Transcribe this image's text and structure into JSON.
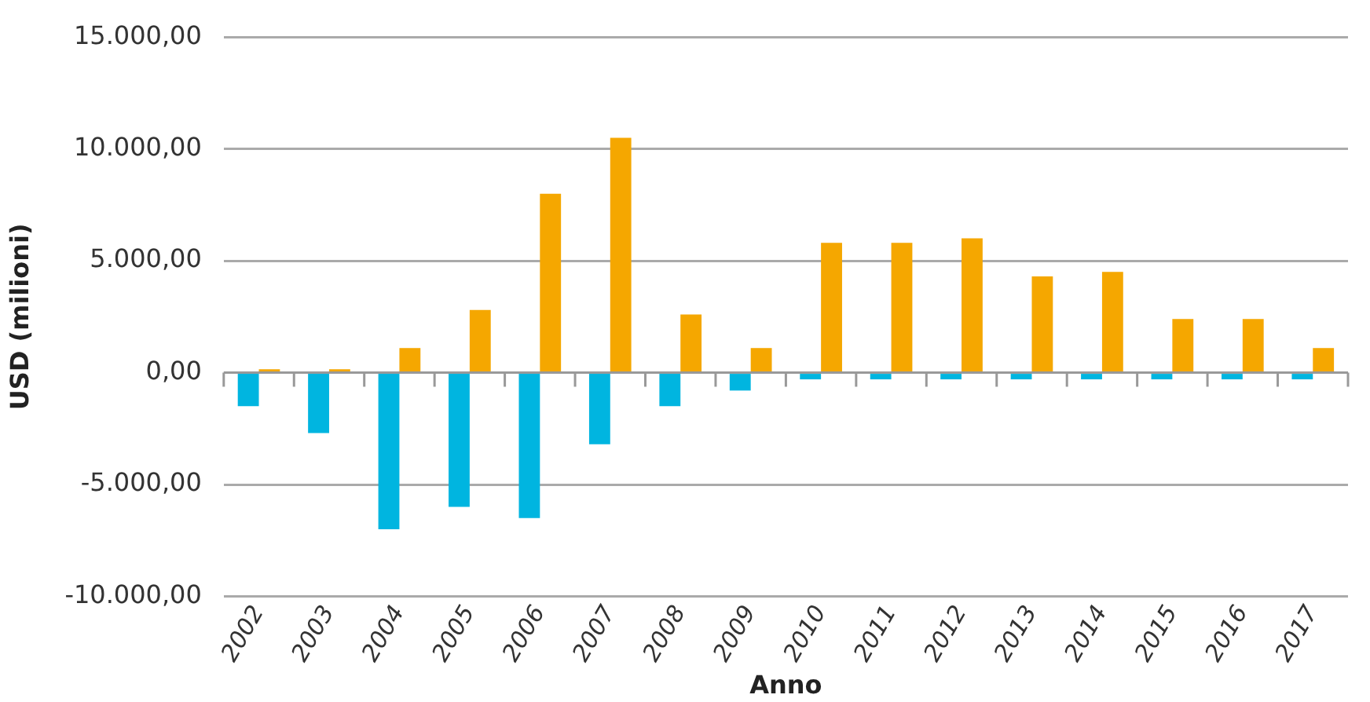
{
  "chart_data": {
    "type": "bar",
    "xlabel": "Anno",
    "ylabel": "USD (milioni)",
    "categories": [
      "2002",
      "2003",
      "2004",
      "2005",
      "2006",
      "2007",
      "2008",
      "2009",
      "2010",
      "2011",
      "2012",
      "2013",
      "2014",
      "2015",
      "2016",
      "2017"
    ],
    "series": [
      {
        "color": "#00b5e0",
        "values": [
          -1500,
          -2700,
          -7000,
          -6000,
          -6500,
          -3200,
          -1500,
          -800,
          -300,
          -300,
          -300,
          -300,
          -300,
          -300,
          -300,
          -300
        ]
      },
      {
        "color": "#f5a700",
        "values": [
          150,
          150,
          1100,
          2800,
          8000,
          10500,
          2600,
          1100,
          5800,
          5800,
          6000,
          4300,
          4500,
          2400,
          2400,
          1100
        ]
      }
    ],
    "ylim": [
      -10000,
      15000
    ],
    "yticks": [
      {
        "value": -10000,
        "label": "-10.000,00"
      },
      {
        "value": -5000,
        "label": "-5.000,00"
      },
      {
        "value": 0,
        "label": "0,00"
      },
      {
        "value": 5000,
        "label": "5.000,00"
      },
      {
        "value": 10000,
        "label": "10.000,00"
      },
      {
        "value": 15000,
        "label": "15.000,00"
      }
    ],
    "grid": "y",
    "legend": false
  }
}
